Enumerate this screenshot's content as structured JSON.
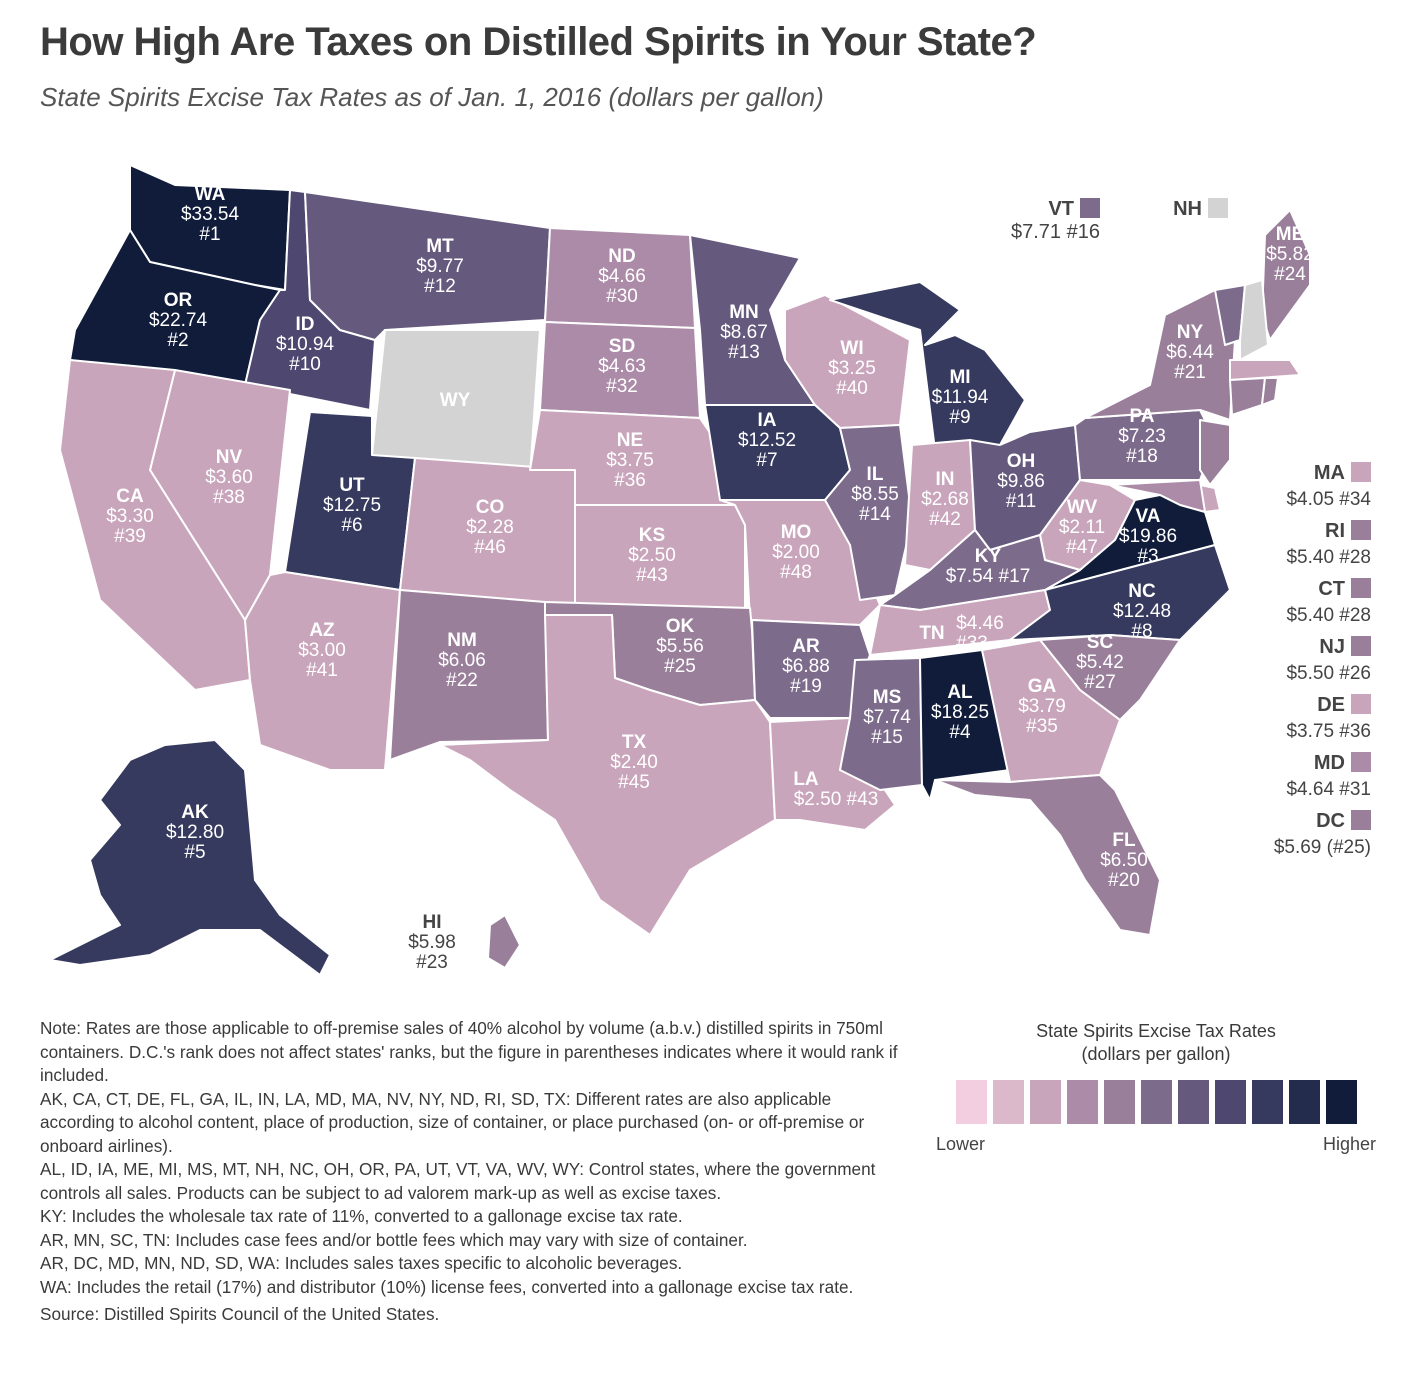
{
  "title": "How High Are Taxes on Distilled Spirits in Your State?",
  "subtitle": "State Spirits Excise Tax Rates as of Jan. 1, 2016 (dollars per gallon)",
  "states": [
    {
      "code": "WA",
      "rate": "$33.54",
      "rank": "#1",
      "shade": 10
    },
    {
      "code": "OR",
      "rate": "$22.74",
      "rank": "#2",
      "shade": 10
    },
    {
      "code": "ID",
      "rate": "$10.94",
      "rank": "#10",
      "shade": 7
    },
    {
      "code": "MT",
      "rate": "$9.77",
      "rank": "#12",
      "shade": 6
    },
    {
      "code": "WY",
      "rate": "",
      "rank": "",
      "shade": "none"
    },
    {
      "code": "ND",
      "rate": "$4.66",
      "rank": "#30",
      "shade": 3
    },
    {
      "code": "SD",
      "rate": "$4.63",
      "rank": "#32",
      "shade": 3
    },
    {
      "code": "MN",
      "rate": "$8.67",
      "rank": "#13",
      "shade": 6
    },
    {
      "code": "WI",
      "rate": "$3.25",
      "rank": "#40",
      "shade": 2
    },
    {
      "code": "MI",
      "rate": "$11.94",
      "rank": "#9",
      "shade": 8
    },
    {
      "code": "NV",
      "rate": "$3.60",
      "rank": "#38",
      "shade": 2
    },
    {
      "code": "CA",
      "rate": "$3.30",
      "rank": "#39",
      "shade": 2
    },
    {
      "code": "UT",
      "rate": "$12.75",
      "rank": "#6",
      "shade": 8
    },
    {
      "code": "CO",
      "rate": "$2.28",
      "rank": "#46",
      "shade": 2
    },
    {
      "code": "NE",
      "rate": "$3.75",
      "rank": "#36",
      "shade": 2
    },
    {
      "code": "KS",
      "rate": "$2.50",
      "rank": "#43",
      "shade": 2
    },
    {
      "code": "IA",
      "rate": "$12.52",
      "rank": "#7",
      "shade": 8
    },
    {
      "code": "MO",
      "rate": "$2.00",
      "rank": "#48",
      "shade": 2
    },
    {
      "code": "IL",
      "rate": "$8.55",
      "rank": "#14",
      "shade": 5
    },
    {
      "code": "IN",
      "rate": "$2.68",
      "rank": "#42",
      "shade": 2
    },
    {
      "code": "OH",
      "rate": "$9.86",
      "rank": "#11",
      "shade": 6
    },
    {
      "code": "PA",
      "rate": "$7.23",
      "rank": "#18",
      "shade": 5
    },
    {
      "code": "NY",
      "rate": "$6.44",
      "rank": "#21",
      "shade": 4
    },
    {
      "code": "ME",
      "rate": "$5.82",
      "rank": "#24",
      "shade": 4
    },
    {
      "code": "WV",
      "rate": "$2.11",
      "rank": "#47",
      "shade": 2
    },
    {
      "code": "VA",
      "rate": "$19.86",
      "rank": "#3",
      "shade": 10
    },
    {
      "code": "KY",
      "rate": "$7.54",
      "rank": "#17",
      "shade": 5
    },
    {
      "code": "AZ",
      "rate": "$3.00",
      "rank": "#41",
      "shade": 2
    },
    {
      "code": "NM",
      "rate": "$6.06",
      "rank": "#22",
      "shade": 4
    },
    {
      "code": "OK",
      "rate": "$5.56",
      "rank": "#25",
      "shade": 4
    },
    {
      "code": "AR",
      "rate": "$6.88",
      "rank": "#19",
      "shade": 5
    },
    {
      "code": "TN",
      "rate": "$4.46",
      "rank": "#33",
      "shade": 2
    },
    {
      "code": "NC",
      "rate": "$12.48",
      "rank": "#8",
      "shade": 8
    },
    {
      "code": "SC",
      "rate": "$5.42",
      "rank": "#27",
      "shade": 4
    },
    {
      "code": "TX",
      "rate": "$2.40",
      "rank": "#45",
      "shade": 2
    },
    {
      "code": "LA",
      "rate": "$2.50",
      "rank": "#43",
      "shade": 2
    },
    {
      "code": "MS",
      "rate": "$7.74",
      "rank": "#15",
      "shade": 5
    },
    {
      "code": "AL",
      "rate": "$18.25",
      "rank": "#4",
      "shade": 10
    },
    {
      "code": "GA",
      "rate": "$3.79",
      "rank": "#35",
      "shade": 2
    },
    {
      "code": "FL",
      "rate": "$6.50",
      "rank": "#20",
      "shade": 4
    },
    {
      "code": "AK",
      "rate": "$12.80",
      "rank": "#5",
      "shade": 8
    },
    {
      "code": "HI",
      "rate": "$5.98",
      "rank": "#23",
      "shade": 4
    }
  ],
  "callouts_top": [
    {
      "code": "VT",
      "rate": "$7.71",
      "rank": "#16",
      "shade": 5
    },
    {
      "code": "NH",
      "rate": "",
      "rank": "",
      "shade": "none"
    }
  ],
  "callouts_side": [
    {
      "code": "MA",
      "value": "$4.05 #34",
      "shade": 2
    },
    {
      "code": "RI",
      "value": "$5.40 #28",
      "shade": 4
    },
    {
      "code": "CT",
      "value": "$5.40 #28",
      "shade": 4
    },
    {
      "code": "NJ",
      "value": "$5.50 #26",
      "shade": 4
    },
    {
      "code": "DE",
      "value": "$3.75 #36",
      "shade": 2
    },
    {
      "code": "MD",
      "value": "$4.64 #31",
      "shade": 3
    },
    {
      "code": "DC",
      "value": "$5.69 (#25)",
      "shade": 4
    }
  ],
  "colors": {
    "shades": [
      "#f3cde0",
      "#dcb8cb",
      "#c9a5bc",
      "#ab8ba7",
      "#9a7f9b",
      "#7d6b8c",
      "#65597e",
      "#4e4870",
      "#363a5e",
      "#232c4d",
      "#101c3a"
    ],
    "none": "#d3d3d3",
    "text": "#3a3a3a"
  },
  "legend": {
    "title_line1": "State Spirits Excise Tax Rates",
    "title_line2": "(dollars per gallon)",
    "lower": "Lower",
    "higher": "Higher"
  },
  "notes": [
    "Note: Rates are those applicable to off-premise sales of 40% alcohol by volume (a.b.v.) distilled spirits in 750ml containers. D.C.'s rank does not affect states' ranks, but the figure in parentheses indicates where it would rank if included.",
    "AK, CA, CT, DE, FL, GA, IL, IN, LA, MD, MA, NV, NY, ND, RI, SD, TX: Different rates are also applicable according to alcohol content, place of production, size of container, or place purchased (on- or off-premise or onboard airlines).",
    "AL, ID, IA, ME, MI, MS, MT, NH, NC, OH, OR, PA, UT, VT, VA, WV, WY: Control states, where the government controls all sales. Products can be subject to ad valorem mark-up as well as excise taxes.",
    "KY: Includes the wholesale tax rate of 11%, converted to a gallonage excise tax rate.",
    "AR, MN, SC, TN: Includes case fees and/or bottle fees which may vary with size of container.",
    "AR, DC, MD, MN, ND, SD, WA: Includes sales taxes specific to alcoholic beverages.",
    "WA: Includes the retail (17%) and distributor (10%) license fees, converted into a gallonage excise tax rate.",
    "Source: Distilled Spirits Council of the United States."
  ]
}
